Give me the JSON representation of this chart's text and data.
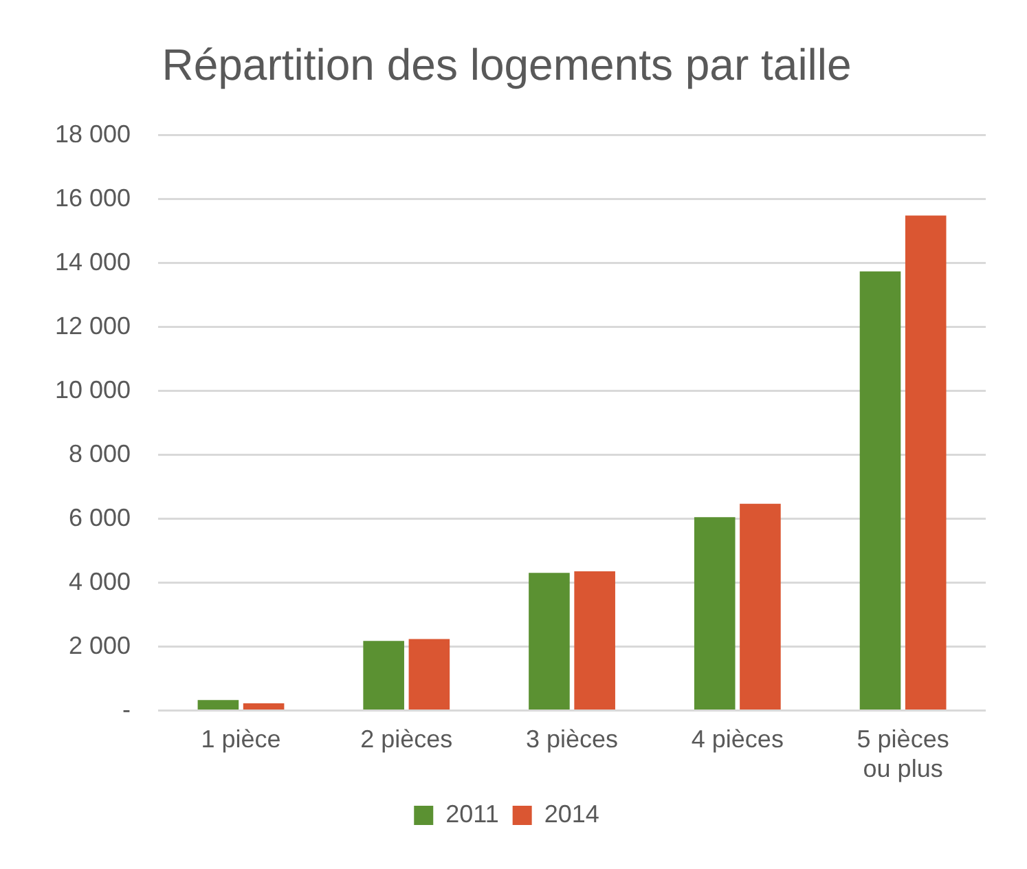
{
  "chart_data": {
    "type": "bar",
    "title": "Répartition des logements par taille",
    "categories": [
      "1 pièce",
      "2 pièces",
      "3 pièces",
      "4 pièces",
      "5 pièces ou plus"
    ],
    "series": [
      {
        "name": "2011",
        "color": "#5b9132",
        "values": [
          330,
          2180,
          4310,
          6050,
          13740
        ]
      },
      {
        "name": "2014",
        "color": "#da5632",
        "values": [
          230,
          2240,
          4360,
          6470,
          15490
        ]
      }
    ],
    "ylim": [
      0,
      18000
    ],
    "yticks": [
      {
        "value": 0,
        "label": "-"
      },
      {
        "value": 2000,
        "label": "2 000"
      },
      {
        "value": 4000,
        "label": "4 000"
      },
      {
        "value": 6000,
        "label": "6 000"
      },
      {
        "value": 8000,
        "label": "8 000"
      },
      {
        "value": 10000,
        "label": "10 000"
      },
      {
        "value": 12000,
        "label": "12 000"
      },
      {
        "value": 14000,
        "label": "14 000"
      },
      {
        "value": 16000,
        "label": "16 000"
      },
      {
        "value": 18000,
        "label": "18 000"
      }
    ],
    "grid": "y",
    "legend": "bottom"
  }
}
